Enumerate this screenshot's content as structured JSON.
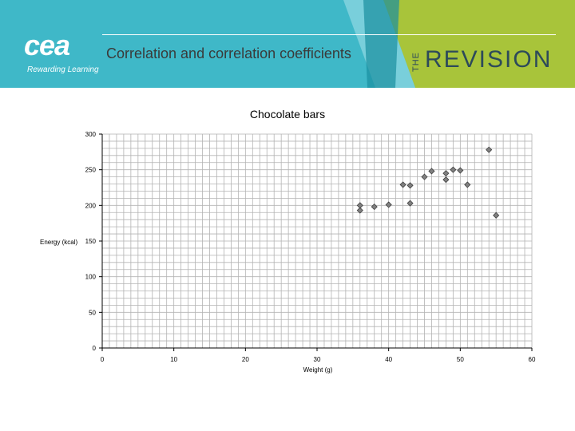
{
  "header": {
    "title": "Correlation and correlation coefficients",
    "logo_text": "cea",
    "logo_tagline": "Rewarding Learning",
    "brand_prefix": "THE",
    "brand_name": "REVISION",
    "colors": {
      "teal": "#3fb8c8",
      "lime": "#a8c43a",
      "dark_teal": "#1a8fa0",
      "text": "#3a3a3a"
    }
  },
  "chart_data": {
    "type": "scatter",
    "title": "Chocolate bars",
    "xlabel": "Weight (g)",
    "ylabel": "Energy (kcal)",
    "xlim": [
      0,
      60
    ],
    "ylim": [
      0,
      300
    ],
    "xticks": [
      0,
      10,
      20,
      30,
      40,
      50,
      60
    ],
    "yticks": [
      0,
      50,
      100,
      150,
      200,
      250,
      300
    ],
    "grid": true,
    "marker": "diamond",
    "marker_color": "#808080",
    "points": [
      {
        "x": 36,
        "y": 193
      },
      {
        "x": 36,
        "y": 200
      },
      {
        "x": 38,
        "y": 198
      },
      {
        "x": 40,
        "y": 201
      },
      {
        "x": 42,
        "y": 229
      },
      {
        "x": 43,
        "y": 228
      },
      {
        "x": 43,
        "y": 203
      },
      {
        "x": 45,
        "y": 240
      },
      {
        "x": 46,
        "y": 248
      },
      {
        "x": 48,
        "y": 245
      },
      {
        "x": 48,
        "y": 236
      },
      {
        "x": 49,
        "y": 250
      },
      {
        "x": 50,
        "y": 249
      },
      {
        "x": 51,
        "y": 229
      },
      {
        "x": 54,
        "y": 278
      },
      {
        "x": 55,
        "y": 186
      }
    ]
  }
}
